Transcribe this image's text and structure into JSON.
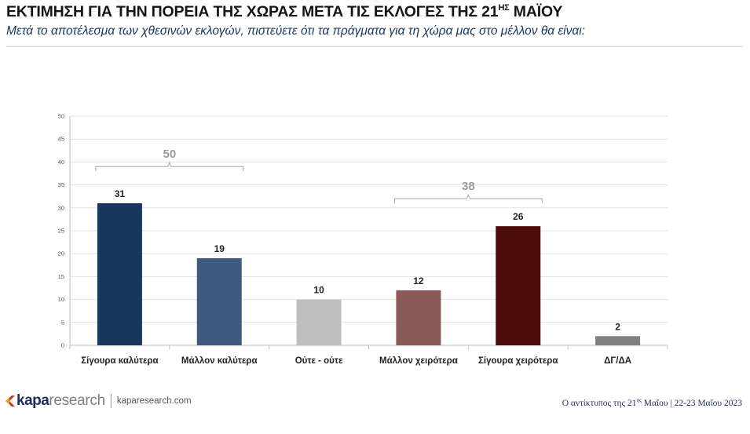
{
  "header": {
    "title_main": "ΕΚΤΙΜΗΣΗ ΓΙΑ ΤΗΝ ΠΟΡΕΙΑ ΤΗΣ ΧΩΡΑΣ ΜΕΤΑ ΤΙΣ ΕΚΛΟΓΕΣ ΤΗΣ 21",
    "title_sup": "ΗΣ",
    "title_end": " ΜΑΪΟΥ",
    "subtitle": "Μετά το αποτέλεσμα των χθεσινών εκλογών, πιστεύετε ότι τα πράγματα για τη χώρα μας στο μέλλον θα είναι:"
  },
  "chart_data": {
    "type": "bar",
    "title": "ΕΚΤΙΜΗΣΗ ΓΙΑ ΤΗΝ ΠΟΡΕΙΑ ΤΗΣ ΧΩΡΑΣ ΜΕΤΑ ΤΙΣ ΕΚΛΟΓΕΣ ΤΗΣ 21ΗΣ ΜΑΪΟΥ",
    "categories": [
      "Σίγουρα καλύτερα",
      "Μάλλον καλύτερα",
      "Ούτε - ούτε",
      "Μάλλον χειρότερα",
      "Σίγουρα χειρότερα",
      "ΔΓ/ΔΑ"
    ],
    "values": [
      31,
      19,
      10,
      12,
      26,
      2
    ],
    "colors": [
      "#17375e",
      "#3f5a7e",
      "#bdbdbd",
      "#8b5a58",
      "#4d0d0a",
      "#7f7f7f"
    ],
    "ylim": [
      0,
      50
    ],
    "yticks": [
      0,
      5,
      10,
      15,
      20,
      25,
      30,
      35,
      40,
      45,
      50
    ],
    "grid": true,
    "xlabel": "",
    "ylabel": "",
    "groups": [
      {
        "label": "50",
        "from": 0,
        "to": 1,
        "level": 39
      },
      {
        "label": "38",
        "from": 3,
        "to": 4,
        "level": 32
      }
    ]
  },
  "footer": {
    "logo_kapa": "kapa",
    "logo_research": "research",
    "website": "kaparesearch.com",
    "note_pre": "Ο αντίκτυπος της 21",
    "note_sup": "ης",
    "note_post": " Μαΐου | 22-23 Μαΐου 2023"
  }
}
